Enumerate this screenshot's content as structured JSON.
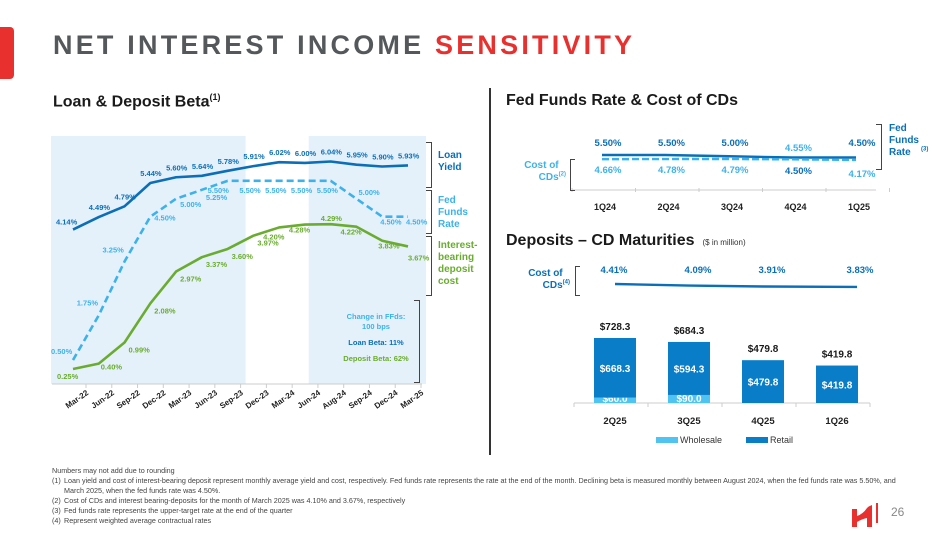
{
  "header": {
    "title_main": "NET INTEREST INCOME ",
    "title_highlight": "SENSITIVITY",
    "page_number": "26",
    "logo": "company-logo-icon"
  },
  "colors": {
    "accent": "#e8312f",
    "dark_blue": "#0a6fb8",
    "light_blue": "#3db2ea",
    "green": "#6aac2f",
    "shade": "#e5f1fa",
    "retail": "#0a7dc8",
    "wholesale": "#4fc3f2"
  },
  "left": {
    "title": "Loan & Deposit Beta",
    "title_sup": "(1)",
    "legend": {
      "loan": "Loan Yield",
      "fed": "Fed Funds Rate",
      "deposit": "Interest-bearing deposit cost"
    },
    "callout": {
      "change": "Change in FFds:",
      "bps": "100 bps",
      "loan_beta": "Loan Beta: 11%",
      "deposit_beta": "Deposit Beta: 62%"
    }
  },
  "right_top": {
    "title": "Fed Funds Rate & Cost of CDs",
    "label_fed": "Fed Funds Rate",
    "label_fed_sup": "(3)",
    "label_cds": "Cost of CDs",
    "label_cds_sup": "(2)"
  },
  "right_bottom": {
    "title": "Deposits – CD Maturities",
    "subtitle": "($ in million)",
    "label_cds": "Cost of CDs",
    "label_cds_sup": "(4)",
    "legend_wholesale": "Wholesale",
    "legend_retail": "Retail"
  },
  "chart_data": [
    {
      "type": "line",
      "title": "Loan & Deposit Beta",
      "categories": [
        "Mar-22",
        "Jun-22",
        "Sep-22",
        "Dec-22",
        "Mar-23",
        "Jun-23",
        "Sep-23",
        "Dec-23",
        "Mar-24",
        "Jun-24",
        "Aug-24",
        "Sep-24",
        "Dec-24",
        "Mar-25"
      ],
      "ylim": [
        0,
        6.5
      ],
      "shaded_ranges": [
        [
          "Mar-22",
          "Sep-23"
        ],
        [
          "Aug-24",
          "Mar-25"
        ]
      ],
      "series": [
        {
          "name": "Loan Yield",
          "style": "solid",
          "values": [
            4.14,
            4.49,
            4.79,
            5.44,
            5.6,
            5.64,
            5.78,
            5.91,
            6.02,
            6.0,
            6.04,
            5.95,
            5.9,
            5.93
          ],
          "labels": [
            "4.14%",
            "4.49%",
            "4.79%",
            "5.44%",
            "5.60%",
            "5.64%",
            "5.78%",
            "5.91%",
            "6.02%",
            "6.00%",
            "6.04%",
            "5.95%",
            "5.90%",
            "5.93%"
          ]
        },
        {
          "name": "Fed Funds Rate",
          "style": "dashed",
          "values": [
            0.5,
            1.75,
            3.25,
            4.5,
            5.0,
            5.25,
            5.5,
            5.5,
            5.5,
            5.5,
            5.5,
            5.0,
            4.5,
            4.5
          ],
          "labels": [
            "0.50%",
            "1.75%",
            "3.25%",
            "4.50%",
            "5.00%",
            "5.25%",
            "5.50%",
            "5.50%",
            "5.50%",
            "5.50%",
            "5.50%",
            "5.00%",
            "4.50%",
            "4.50%"
          ]
        },
        {
          "name": "Interest-bearing deposit cost",
          "style": "solid",
          "values": [
            0.25,
            0.4,
            0.99,
            2.08,
            2.97,
            3.37,
            3.6,
            3.97,
            4.2,
            4.28,
            4.29,
            4.22,
            3.83,
            3.67
          ],
          "labels": [
            "0.25%",
            "0.40%",
            "0.99%",
            "2.08%",
            "2.97%",
            "3.37%",
            "3.60%",
            "3.97%",
            "4.20%",
            "4.28%",
            "4.29%",
            "4.22%",
            "3.83%",
            "3.67%"
          ]
        }
      ]
    },
    {
      "type": "line",
      "title": "Fed Funds Rate & Cost of CDs",
      "categories": [
        "1Q24",
        "2Q24",
        "3Q24",
        "4Q24",
        "1Q25"
      ],
      "series": [
        {
          "name": "Fed Funds Rate",
          "style": "solid",
          "values": [
            5.5,
            5.5,
            5.0,
            4.5,
            4.5
          ],
          "labels": [
            "5.50%",
            "5.50%",
            "5.00%",
            "4.50%",
            "4.50%"
          ]
        },
        {
          "name": "Cost of CDs",
          "style": "dashed",
          "values": [
            4.66,
            4.78,
            4.79,
            4.55,
            4.17
          ],
          "labels": [
            "4.66%",
            "4.78%",
            "4.79%",
            "4.55%",
            "4.17%"
          ]
        }
      ]
    },
    {
      "type": "line",
      "title": "Cost of CDs (maturities)",
      "categories": [
        "2Q25",
        "3Q25",
        "4Q25",
        "1Q26"
      ],
      "series": [
        {
          "name": "Cost of CDs",
          "values": [
            4.41,
            4.09,
            3.91,
            3.83
          ],
          "labels": [
            "4.41%",
            "4.09%",
            "3.91%",
            "3.83%"
          ]
        }
      ]
    },
    {
      "type": "bar",
      "stacked": true,
      "title": "Deposits – CD Maturities ($ in million)",
      "categories": [
        "2Q25",
        "3Q25",
        "4Q25",
        "1Q26"
      ],
      "series": [
        {
          "name": "Wholesale",
          "values": [
            60.0,
            90.0,
            0,
            0
          ],
          "labels": [
            "$60.0",
            "$90.0",
            "",
            ""
          ]
        },
        {
          "name": "Retail",
          "values": [
            668.3,
            594.3,
            479.8,
            419.8
          ],
          "labels": [
            "$668.3",
            "$594.3",
            "$479.8",
            "$419.8"
          ]
        }
      ],
      "totals": [
        "$728.3",
        "$684.3",
        "$479.8",
        "$419.8"
      ],
      "legend": "bottom"
    }
  ],
  "footnotes": {
    "note": "Numbers may not add due to rounding",
    "items": [
      {
        "num": "(1)",
        "text": "Loan yield and cost of interest-bearing deposit represent monthly average yield and cost, respectively. Fed funds rate represents the rate at the end of the month. Declining beta is measured monthly between August 2024, when the fed funds rate was 5.50%, and March 2025, when the fed funds rate was 4.50%."
      },
      {
        "num": "(2)",
        "text": "Cost of CDs and interest bearing-deposits for the month of March 2025 was 4.10% and 3.67%, respectively"
      },
      {
        "num": "(3)",
        "text": "Fed funds rate represents the upper-target rate at the end of the quarter"
      },
      {
        "num": "(4)",
        "text": "Represent weighted average contractual rates"
      }
    ]
  }
}
